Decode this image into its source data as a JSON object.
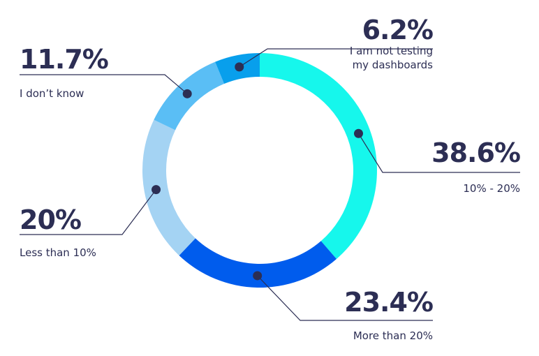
{
  "chart_data": {
    "type": "pie",
    "style": "donut",
    "slices": [
      {
        "label": "10% - 20%",
        "value": 38.6,
        "value_label": "38.6%",
        "color": "#16f7ec"
      },
      {
        "label": "More than 20%",
        "value": 23.4,
        "value_label": "23.4%",
        "color": "#005ced"
      },
      {
        "label": "Less than 10%",
        "value": 20.0,
        "value_label": "20%",
        "color": "#a4d3f3"
      },
      {
        "label": "I don’t know",
        "value": 11.7,
        "value_label": "11.7%",
        "color": "#5abef5"
      },
      {
        "label": "I am not testing my dashboards",
        "label_lines": [
          "I am not testing",
          "my dashboards"
        ],
        "value": 6.2,
        "value_label": "6.2%",
        "color": "#089fec"
      }
    ],
    "marker_color": "#2c2e54",
    "text_color": "#2c2e54",
    "title": "",
    "legend": "none"
  }
}
